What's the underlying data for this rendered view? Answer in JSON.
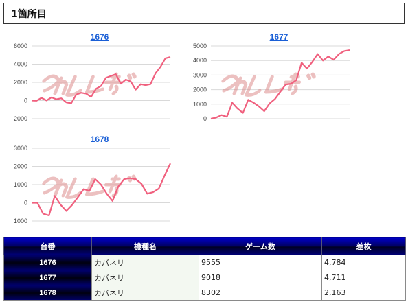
{
  "section": {
    "title": "1箇所目"
  },
  "charts": [
    {
      "link_label": "1676",
      "chart_data": {
        "type": "line",
        "title": "1676",
        "xlabel": "",
        "ylabel": "",
        "y_ticks": [
          "6000",
          "4000",
          "2000",
          "0",
          "-2000"
        ],
        "ylim": [
          -2000,
          6000
        ],
        "series": [
          {
            "values": [
              0,
              -20,
              300,
              10,
              350,
              140,
              250,
              -200,
              -300,
              650,
              850,
              760,
              400,
              1300,
              1600,
              2500,
              2700,
              2900,
              1850,
              2300,
              2100,
              1200,
              1800,
              1700,
              1800,
              3000,
              3700,
              4650,
              4784
            ]
          }
        ],
        "line_color": "#f0607e",
        "grid": true,
        "watermark_color": "#dd8d8d"
      }
    },
    {
      "link_label": "1677",
      "chart_data": {
        "type": "line",
        "title": "1677",
        "xlabel": "",
        "ylabel": "",
        "y_ticks": [
          "5000",
          "4000",
          "3000",
          "2000",
          "1000",
          "0"
        ],
        "ylim": [
          0,
          5000
        ],
        "series": [
          {
            "values": [
              0,
              80,
              250,
              130,
              1100,
              700,
              400,
              1300,
              1100,
              850,
              520,
              1050,
              1350,
              1850,
              2350,
              2400,
              2650,
              3850,
              3450,
              3900,
              4450,
              4000,
              4280,
              4050,
              4450,
              4650,
              4711
            ]
          }
        ],
        "line_color": "#f0607e",
        "grid": true,
        "watermark_color": "#dd8d8d"
      }
    },
    {
      "link_label": "1678",
      "chart_data": {
        "type": "line",
        "title": "1678",
        "xlabel": "",
        "ylabel": "",
        "y_ticks": [
          "3000",
          "2000",
          "1000",
          "0",
          "-1000"
        ],
        "ylim": [
          -1000,
          3000
        ],
        "series": [
          {
            "values": [
              0,
              0,
              -600,
              -700,
              380,
              -100,
              -450,
              -120,
              300,
              750,
              650,
              1300,
              1000,
              500,
              100,
              900,
              1300,
              1350,
              1300,
              1050,
              500,
              580,
              780,
              1500,
              2163
            ]
          }
        ],
        "line_color": "#f0607e",
        "grid": true,
        "watermark_color": "#dd8d8d"
      }
    }
  ],
  "table": {
    "headers": [
      "台番",
      "機種名",
      "ゲーム数",
      "差枚"
    ],
    "rows": [
      {
        "machine": "1676",
        "kishu": "カバネリ",
        "games": "9555",
        "diff": "4,784"
      },
      {
        "machine": "1677",
        "kishu": "カバネリ",
        "games": "9018",
        "diff": "4,711"
      },
      {
        "machine": "1678",
        "kishu": "カバネリ",
        "games": "8302",
        "diff": "2,163"
      }
    ]
  }
}
